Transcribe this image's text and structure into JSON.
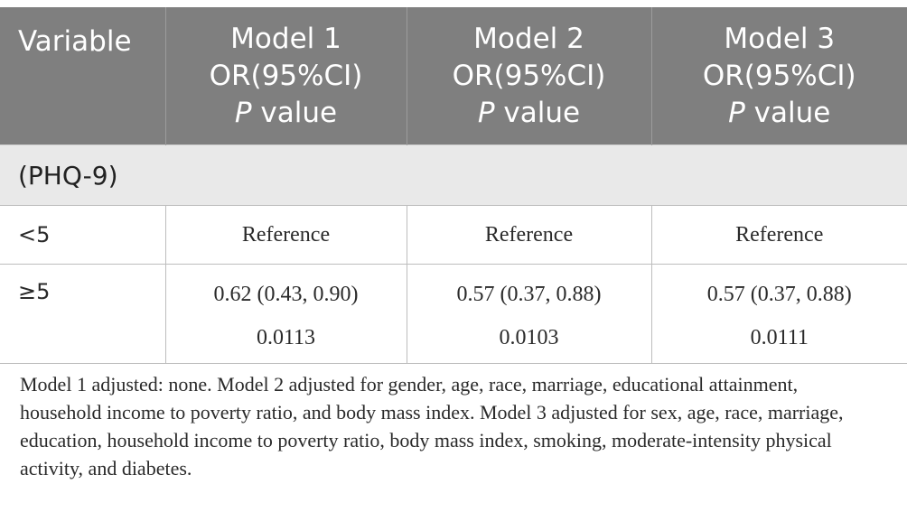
{
  "table": {
    "headers": [
      {
        "title": "Variable"
      },
      {
        "title": "Model 1",
        "stat": "OR(95%CI)",
        "p_label": "P",
        "p_suffix": " value"
      },
      {
        "title": "Model 2",
        "stat": "OR(95%CI)",
        "p_label": "P",
        "p_suffix": " value"
      },
      {
        "title": "Model 3",
        "stat": "OR(95%CI)",
        "p_label": "P",
        "p_suffix": " value"
      }
    ],
    "section_label": "(PHQ-9)",
    "rows": [
      {
        "label": "<5",
        "cells": [
          "Reference",
          "Reference",
          "Reference"
        ]
      },
      {
        "label": "≥5",
        "cells": [
          {
            "or": "0.62 (0.43, 0.90)",
            "p": "0.0113"
          },
          {
            "or": "0.57 (0.37, 0.88)",
            "p": "0.0103"
          },
          {
            "or": "0.57 (0.37, 0.88)",
            "p": "0.0111"
          }
        ]
      }
    ]
  },
  "footnote": "Model 1 adjusted: none. Model 2 adjusted for gender, age, race, marriage, educational attainment, household income to poverty ratio, and body mass index. Model 3 adjusted for sex, age, race, marriage, education, household income to poverty ratio, body mass index, smoking, moderate-intensity physical activity, and diabetes.",
  "colors": {
    "header_bg": "#7f7f7f",
    "section_bg": "#e9e9e9",
    "rule": "#bdbdbd"
  }
}
